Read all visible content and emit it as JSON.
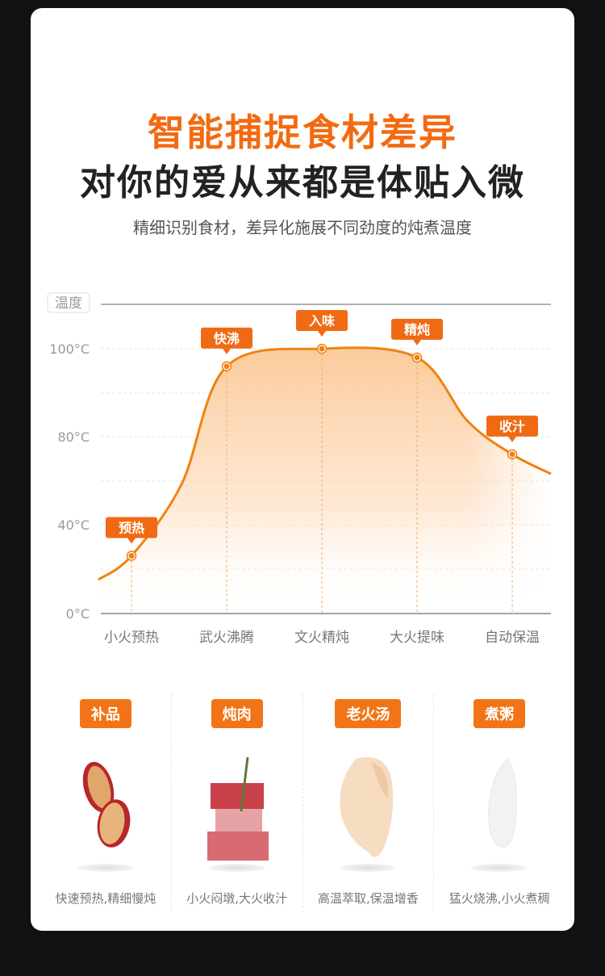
{
  "header": {
    "title_orange": "智能捕捉食材差异",
    "title_black": "对你的爱从来都是体贴入微",
    "subtitle": "精细识别食材，差异化施展不同劲度的炖煮温度"
  },
  "colors": {
    "accent": "#f27417",
    "curve": "#f0820f",
    "fill": "#fbd0a8"
  },
  "chart_data": {
    "type": "area",
    "ylabel": "温度",
    "y_ticks": [
      "0°C",
      "40°C",
      "80°C",
      "100°C"
    ],
    "y_tick_values": [
      0,
      40,
      80,
      100
    ],
    "categories": [
      "小火预热",
      "武火沸腾",
      "文火精炖",
      "大火提味",
      "自动保温"
    ],
    "values": [
      26,
      96,
      100,
      98,
      72
    ],
    "point_labels": [
      "预热",
      "快沸",
      "入味",
      "精炖",
      "收汁"
    ],
    "grid": true
  },
  "foods": [
    {
      "tag": "补品",
      "desc": "快速预热,精细慢炖",
      "image": "red-dates"
    },
    {
      "tag": "炖肉",
      "desc": "小火闷墩,大火收汁",
      "image": "beef-cubes"
    },
    {
      "tag": "老火汤",
      "desc": "高温萃取,保温增香",
      "image": "whole-chicken"
    },
    {
      "tag": "煮粥",
      "desc": "猛火烧沸,小火煮稠",
      "image": "rice-grain"
    }
  ]
}
